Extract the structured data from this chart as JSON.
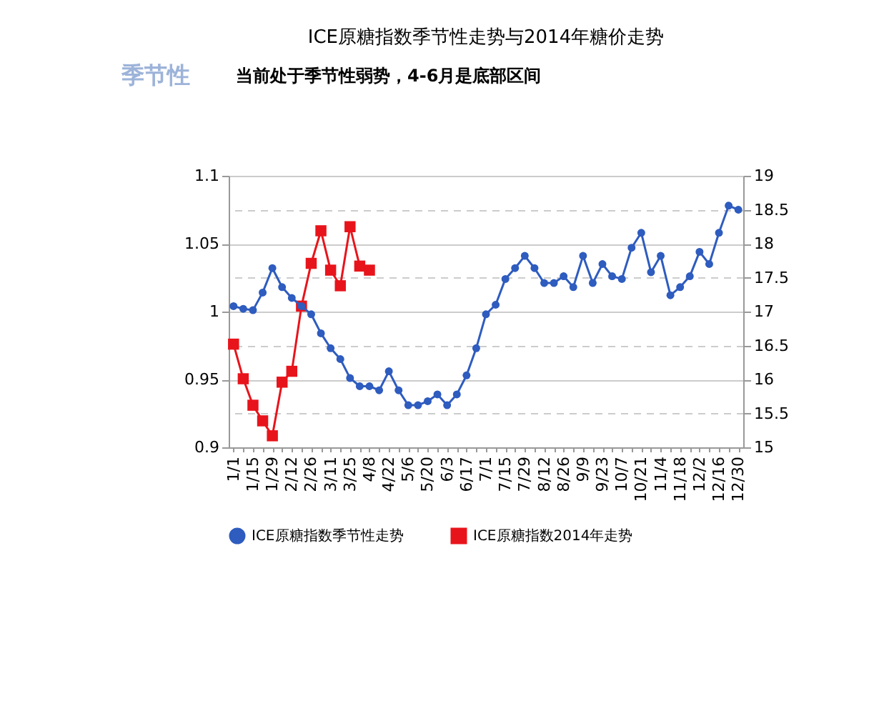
{
  "chart_data": {
    "type": "line",
    "title": "ICE原糖指数季节性走势与2014年糖价走势",
    "annotations": [
      "季节性",
      "当前处于季节性弱势，4-6月是底部区间"
    ],
    "categories": [
      "1/1",
      null,
      "1/15",
      null,
      "1/29",
      null,
      "2/12",
      null,
      "2/26",
      null,
      "3/11",
      null,
      "3/25",
      null,
      "4/8",
      null,
      "4/22",
      null,
      "5/6",
      null,
      "5/20",
      null,
      "6/3",
      null,
      "6/17",
      null,
      "7/1",
      null,
      "7/15",
      null,
      "7/29",
      null,
      "8/12",
      null,
      "8/26",
      null,
      "9/9",
      null,
      "9/23",
      null,
      "10/7",
      null,
      "10/21",
      null,
      "11/4",
      null,
      "11/18",
      null,
      "12/2",
      null,
      "12/16",
      null,
      "12/30"
    ],
    "series": [
      {
        "name": "ICE原糖指数季节性走势",
        "color": "#2e5cbf",
        "marker": "circle",
        "values": [
          1.004,
          1.002,
          1.001,
          1.014,
          1.032,
          1.018,
          1.01,
          1.004,
          0.998,
          0.984,
          0.973,
          0.965,
          0.951,
          0.945,
          0.945,
          0.942,
          0.956,
          0.942,
          0.931,
          0.931,
          0.934,
          0.939,
          0.931,
          0.939,
          0.953,
          0.973,
          0.998,
          1.005,
          1.024,
          1.032,
          1.041,
          1.032,
          1.021,
          1.021,
          1.026,
          1.018,
          1.041,
          1.021,
          1.035,
          1.026,
          1.024,
          1.047,
          1.058,
          1.029,
          1.041,
          1.012,
          1.018,
          1.026,
          1.044,
          1.035,
          1.058,
          1.078,
          1.075
        ]
      },
      {
        "name": "ICE原糖指数2014年走势",
        "color": "#e8141b",
        "marker": "square",
        "axis": "y2",
        "values": [
          16.52,
          16.01,
          15.62,
          15.39,
          15.17,
          15.96,
          16.12,
          17.08,
          17.71,
          18.19,
          17.61,
          17.38,
          18.25,
          17.67,
          17.61,
          null,
          null,
          null,
          null,
          null,
          null,
          null,
          null,
          null,
          null,
          null,
          null,
          null,
          null,
          null,
          null,
          null,
          null,
          null,
          null,
          null,
          null,
          null,
          null,
          null,
          null,
          null,
          null,
          null,
          null,
          null,
          null,
          null,
          null,
          null,
          null,
          null,
          null
        ]
      }
    ],
    "ylim": [
      0.9,
      1.1
    ],
    "yticks": [
      0.9,
      0.95,
      1,
      1.05,
      1.1
    ],
    "y2lim": [
      15,
      19
    ],
    "y2ticks": [
      15,
      15.5,
      16,
      16.5,
      17,
      17.5,
      18,
      18.5,
      19
    ],
    "grid": "y",
    "legend": "bottom",
    "line_style": "solid"
  }
}
